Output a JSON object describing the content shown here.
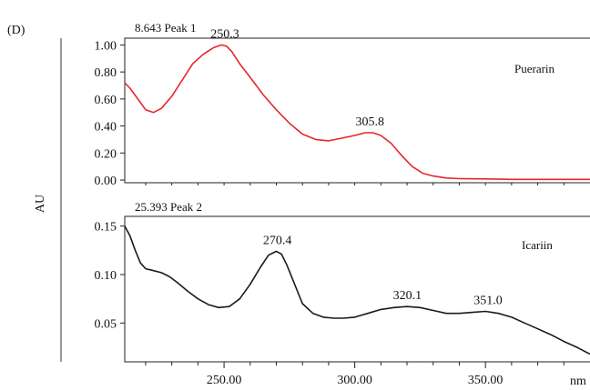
{
  "panel_label": "(D)",
  "y_axis_label": "AU",
  "x_unit_label": "nm",
  "chart_data": [
    {
      "type": "line",
      "header": "8.643 Peak 1",
      "annotation": "Puerarin",
      "color": "#e8262b",
      "xlim": [
        212,
        390
      ],
      "ylim": [
        -0.02,
        1.05
      ],
      "y_ticks": [
        0.0,
        0.2,
        0.4,
        0.6,
        0.8,
        1.0
      ],
      "y_tick_labels": [
        "0.00",
        "0.20",
        "0.40",
        "0.60",
        "0.80",
        "1.00"
      ],
      "peaks": [
        {
          "x": 250.3,
          "y": 1.0,
          "label": "250.3"
        },
        {
          "x": 305.8,
          "y": 0.35,
          "label": "305.8"
        }
      ],
      "series": [
        {
          "x": [
            212,
            214,
            217,
            220,
            223,
            226,
            230,
            234,
            238,
            242,
            246,
            249,
            251,
            253,
            256,
            260,
            265,
            270,
            275,
            280,
            285,
            290,
            295,
            300,
            304,
            307,
            310,
            314,
            318,
            322,
            326,
            330,
            335,
            340,
            350,
            360,
            370,
            380,
            390
          ],
          "y": [
            0.72,
            0.68,
            0.6,
            0.52,
            0.5,
            0.53,
            0.62,
            0.74,
            0.86,
            0.93,
            0.98,
            1.0,
            0.99,
            0.95,
            0.86,
            0.76,
            0.63,
            0.52,
            0.42,
            0.34,
            0.3,
            0.29,
            0.31,
            0.33,
            0.35,
            0.35,
            0.33,
            0.27,
            0.18,
            0.1,
            0.05,
            0.03,
            0.015,
            0.01,
            0.008,
            0.005,
            0.005,
            0.005,
            0.005
          ]
        }
      ]
    },
    {
      "type": "line",
      "header": "25.393 Peak 2",
      "annotation": "Icariin",
      "color": "#1a1a1a",
      "xlim": [
        212,
        390
      ],
      "ylim": [
        0.01,
        0.16
      ],
      "y_ticks": [
        0.05,
        0.1,
        0.15
      ],
      "y_tick_labels": [
        "0.05",
        "0.10",
        "0.15"
      ],
      "x_ticks": [
        250,
        300,
        350
      ],
      "x_tick_labels": [
        "250.00",
        "300.00",
        "350.00"
      ],
      "peaks": [
        {
          "x": 270.4,
          "y": 0.124,
          "label": "270.4"
        },
        {
          "x": 320.1,
          "y": 0.067,
          "label": "320.1"
        },
        {
          "x": 351.0,
          "y": 0.062,
          "label": "351.0"
        }
      ],
      "series": [
        {
          "x": [
            212,
            214,
            216,
            218,
            220,
            223,
            226,
            229,
            232,
            236,
            240,
            244,
            248,
            252,
            256,
            260,
            264,
            267,
            270,
            272,
            274,
            277,
            280,
            284,
            288,
            292,
            296,
            300,
            305,
            310,
            315,
            320,
            325,
            330,
            335,
            340,
            345,
            350,
            355,
            360,
            365,
            370,
            375,
            380,
            385,
            390
          ],
          "y": [
            0.15,
            0.14,
            0.125,
            0.112,
            0.106,
            0.104,
            0.102,
            0.098,
            0.092,
            0.083,
            0.075,
            0.069,
            0.066,
            0.067,
            0.075,
            0.09,
            0.108,
            0.12,
            0.124,
            0.121,
            0.11,
            0.09,
            0.07,
            0.06,
            0.056,
            0.055,
            0.055,
            0.056,
            0.06,
            0.064,
            0.066,
            0.067,
            0.066,
            0.063,
            0.06,
            0.06,
            0.061,
            0.062,
            0.06,
            0.056,
            0.05,
            0.044,
            0.038,
            0.031,
            0.025,
            0.018
          ]
        }
      ]
    }
  ]
}
